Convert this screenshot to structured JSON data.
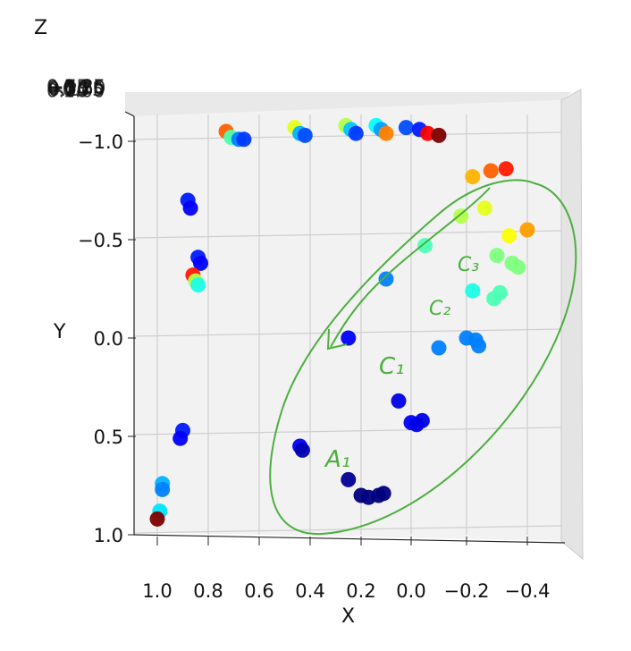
{
  "chart_data": {
    "type": "scatter",
    "projection": "3d",
    "grid": true,
    "xlabel": "X",
    "ylabel": "Y",
    "zlabel": "Z",
    "x_ticks": [
      "1.0",
      "0.8",
      "0.6",
      "0.4",
      "0.2",
      "0.0",
      "−0.2",
      "−0.4"
    ],
    "y_ticks": [
      "−1.0",
      "−0.5",
      "0.0",
      "0.5",
      "1.0"
    ],
    "z_ticks": [
      "0.75",
      "0.50",
      "0.25",
      "0.00",
      "−0.25",
      "−0.50",
      "−0.75",
      "−1.00",
      "−1.25"
    ],
    "xlim": [
      1.0,
      -0.45
    ],
    "ylim": [
      -1.1,
      1.05
    ],
    "colormap": "jet",
    "points": [
      {
        "x": 0.73,
        "y": -1.05,
        "c": 0.78
      },
      {
        "x": 0.71,
        "y": -1.02,
        "c": 0.45
      },
      {
        "x": 0.68,
        "y": -1.01,
        "c": 0.25
      },
      {
        "x": 0.66,
        "y": -1.01,
        "c": 0.18
      },
      {
        "x": 0.46,
        "y": -1.07,
        "c": 0.6
      },
      {
        "x": 0.44,
        "y": -1.04,
        "c": 0.3
      },
      {
        "x": 0.42,
        "y": -1.03,
        "c": 0.2
      },
      {
        "x": 0.26,
        "y": -1.08,
        "c": 0.55
      },
      {
        "x": 0.24,
        "y": -1.06,
        "c": 0.32
      },
      {
        "x": 0.22,
        "y": -1.04,
        "c": 0.18
      },
      {
        "x": 0.14,
        "y": -1.08,
        "c": 0.38
      },
      {
        "x": 0.12,
        "y": -1.06,
        "c": 0.28
      },
      {
        "x": 0.1,
        "y": -1.04,
        "c": 0.75
      },
      {
        "x": 0.02,
        "y": -1.07,
        "c": 0.2
      },
      {
        "x": -0.03,
        "y": -1.06,
        "c": 0.15
      },
      {
        "x": -0.06,
        "y": -1.04,
        "c": 0.88
      },
      {
        "x": -0.1,
        "y": -1.03,
        "c": 1.0
      },
      {
        "x": 0.88,
        "y": -0.7,
        "c": 0.15
      },
      {
        "x": 0.87,
        "y": -0.66,
        "c": 0.12
      },
      {
        "x": 0.84,
        "y": -0.41,
        "c": 0.15
      },
      {
        "x": 0.83,
        "y": -0.38,
        "c": 0.12
      },
      {
        "x": 0.86,
        "y": -0.32,
        "c": 0.85
      },
      {
        "x": 0.85,
        "y": -0.29,
        "c": 0.55
      },
      {
        "x": 0.84,
        "y": -0.27,
        "c": 0.4
      },
      {
        "x": 0.9,
        "y": 0.47,
        "c": 0.15
      },
      {
        "x": 0.91,
        "y": 0.51,
        "c": 0.12
      },
      {
        "x": 0.98,
        "y": 0.74,
        "c": 0.3
      },
      {
        "x": 0.98,
        "y": 0.77,
        "c": 0.25
      },
      {
        "x": 0.99,
        "y": 0.88,
        "c": 0.35
      },
      {
        "x": 1.0,
        "y": 0.92,
        "c": 1.0
      },
      {
        "x": -0.22,
        "y": -0.82,
        "c": 0.7
      },
      {
        "x": -0.28,
        "y": -0.85,
        "c": 0.78
      },
      {
        "x": -0.33,
        "y": -0.86,
        "c": 0.85
      },
      {
        "x": -0.18,
        "y": -0.62,
        "c": 0.55
      },
      {
        "x": -0.26,
        "y": -0.66,
        "c": 0.6
      },
      {
        "x": -0.34,
        "y": -0.52,
        "c": 0.62
      },
      {
        "x": -0.4,
        "y": -0.55,
        "c": 0.72
      },
      {
        "x": -0.3,
        "y": -0.42,
        "c": 0.5
      },
      {
        "x": -0.35,
        "y": -0.38,
        "c": 0.5
      },
      {
        "x": -0.37,
        "y": -0.36,
        "c": 0.5
      },
      {
        "x": -0.05,
        "y": -0.47,
        "c": 0.45
      },
      {
        "x": -0.22,
        "y": -0.24,
        "c": 0.4
      },
      {
        "x": -0.29,
        "y": -0.2,
        "c": 0.45
      },
      {
        "x": -0.31,
        "y": -0.23,
        "c": 0.45
      },
      {
        "x": 0.1,
        "y": -0.3,
        "c": 0.25
      },
      {
        "x": -0.1,
        "y": 0.05,
        "c": 0.25
      },
      {
        "x": -0.2,
        "y": 0.0,
        "c": 0.25
      },
      {
        "x": -0.23,
        "y": 0.01,
        "c": 0.25
      },
      {
        "x": -0.24,
        "y": 0.04,
        "c": 0.25
      },
      {
        "x": 0.25,
        "y": 0.0,
        "c": 0.12
      },
      {
        "x": 0.05,
        "y": 0.32,
        "c": 0.1
      },
      {
        "x": 0.0,
        "y": 0.43,
        "c": 0.12
      },
      {
        "x": -0.02,
        "y": 0.44,
        "c": 0.1
      },
      {
        "x": -0.04,
        "y": 0.42,
        "c": 0.1
      },
      {
        "x": 0.44,
        "y": 0.55,
        "c": 0.12
      },
      {
        "x": 0.43,
        "y": 0.57,
        "c": 0.05
      },
      {
        "x": 0.25,
        "y": 0.72,
        "c": 0.02
      },
      {
        "x": 0.2,
        "y": 0.8,
        "c": 0.0
      },
      {
        "x": 0.17,
        "y": 0.81,
        "c": 0.0
      },
      {
        "x": 0.13,
        "y": 0.8,
        "c": 0.0
      },
      {
        "x": 0.11,
        "y": 0.79,
        "c": 0.0
      }
    ],
    "annotations": [
      "A₁",
      "C₁",
      "C₂",
      "C₃"
    ]
  },
  "colors": {
    "annotation_green": "#4caf3e",
    "pane": "#f2f2f2",
    "grid": "#cfcfcf"
  }
}
